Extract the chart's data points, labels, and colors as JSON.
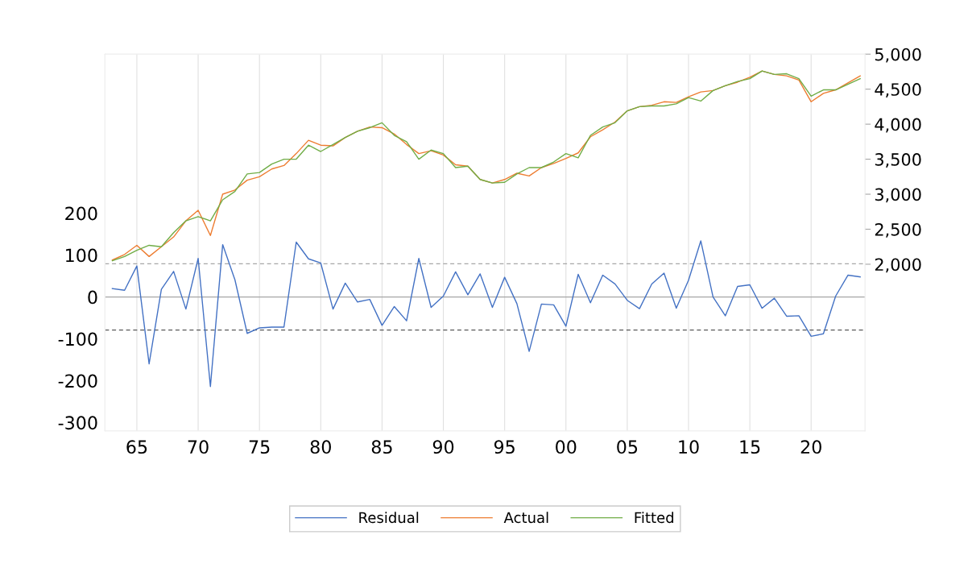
{
  "chart_data": {
    "type": "line",
    "x": [
      1963,
      1964,
      1965,
      1966,
      1967,
      1968,
      1969,
      1970,
      1971,
      1972,
      1973,
      1974,
      1975,
      1976,
      1977,
      1978,
      1979,
      1980,
      1981,
      1982,
      1983,
      1984,
      1985,
      1986,
      1987,
      1988,
      1989,
      1990,
      1991,
      1992,
      1993,
      1994,
      1995,
      1996,
      1997,
      1998,
      1999,
      2000,
      2001,
      2002,
      2003,
      2004,
      2005,
      2006,
      2007,
      2008,
      2009,
      2010,
      2011,
      2012,
      2013,
      2014,
      2015,
      2016,
      2017,
      2018,
      2019,
      2020,
      2021,
      2022,
      2023,
      2024
    ],
    "series": [
      {
        "name": "Residual",
        "color": "#4472c4",
        "axis": "y",
        "values": [
          20,
          16,
          74,
          -160,
          18,
          61,
          -29,
          92,
          -214,
          125,
          41,
          -87,
          -74,
          -72,
          -72,
          131,
          91,
          81,
          -29,
          33,
          -12,
          -6,
          -68,
          -23,
          -57,
          92,
          -25,
          2,
          60,
          5,
          55,
          -25,
          47,
          -16,
          -130,
          -17,
          -19,
          -70,
          54,
          -14,
          52,
          31,
          -8,
          -28,
          31,
          57,
          -27,
          40,
          134,
          0,
          -45,
          25,
          29,
          -27,
          -3,
          -46,
          -45,
          -94,
          -88,
          2,
          52,
          48
        ]
      },
      {
        "name": "Actual",
        "color": "#ed7d31",
        "axis": "y2",
        "values": [
          2060,
          2140,
          2270,
          2110,
          2250,
          2390,
          2620,
          2770,
          2410,
          3000,
          3060,
          3200,
          3250,
          3360,
          3410,
          3580,
          3770,
          3700,
          3690,
          3810,
          3900,
          3960,
          3950,
          3860,
          3710,
          3580,
          3620,
          3560,
          3420,
          3400,
          3210,
          3160,
          3210,
          3300,
          3260,
          3380,
          3440,
          3510,
          3590,
          3820,
          3920,
          4030,
          4190,
          4250,
          4270,
          4320,
          4310,
          4390,
          4460,
          4480,
          4550,
          4600,
          4670,
          4760,
          4710,
          4690,
          4630,
          4320,
          4440,
          4490,
          4590,
          4690
        ]
      },
      {
        "name": "Fitted",
        "color": "#70ad47",
        "axis": "y2",
        "values": [
          2050,
          2110,
          2200,
          2270,
          2250,
          2450,
          2620,
          2680,
          2620,
          2920,
          3040,
          3290,
          3310,
          3430,
          3500,
          3500,
          3700,
          3610,
          3710,
          3810,
          3900,
          3950,
          4020,
          3840,
          3750,
          3500,
          3630,
          3580,
          3380,
          3400,
          3210,
          3160,
          3170,
          3290,
          3380,
          3380,
          3460,
          3580,
          3520,
          3840,
          3960,
          4020,
          4190,
          4250,
          4260,
          4260,
          4290,
          4380,
          4330,
          4480,
          4550,
          4610,
          4650,
          4760,
          4710,
          4720,
          4650,
          4400,
          4490,
          4490,
          4570,
          4650
        ]
      }
    ],
    "xlim": [
      1962.4,
      2024.4
    ],
    "xticks": [
      {
        "value": 1965,
        "label": "65"
      },
      {
        "value": 1970,
        "label": "70"
      },
      {
        "value": 1975,
        "label": "75"
      },
      {
        "value": 1980,
        "label": "80"
      },
      {
        "value": 1985,
        "label": "85"
      },
      {
        "value": 1990,
        "label": "90"
      },
      {
        "value": 1995,
        "label": "95"
      },
      {
        "value": 2000,
        "label": "00"
      },
      {
        "value": 2005,
        "label": "05"
      },
      {
        "value": 2010,
        "label": "10"
      },
      {
        "value": 2015,
        "label": "15"
      },
      {
        "value": 2020,
        "label": "20"
      }
    ],
    "ylim": [
      -320,
      580
    ],
    "yticks": [
      -300,
      -200,
      -100,
      0,
      100,
      200
    ],
    "y2lim": [
      -380,
      5000
    ],
    "y2ticks": [
      {
        "value": 2000,
        "label": "2,000"
      },
      {
        "value": 2500,
        "label": "2,500"
      },
      {
        "value": 3000,
        "label": "3,000"
      },
      {
        "value": 3500,
        "label": "3,500"
      },
      {
        "value": 4000,
        "label": "4,000"
      },
      {
        "value": 4500,
        "label": "4,500"
      },
      {
        "value": 5000,
        "label": "5,000"
      }
    ],
    "ref_lines": [
      {
        "axis": "y",
        "value": 0,
        "color": "#a6a6a6",
        "line_style": "solid"
      },
      {
        "axis": "y",
        "value": 79,
        "color": "#a6a6a6",
        "line_style": "dashed"
      },
      {
        "axis": "y",
        "value": -79,
        "color": "#595959",
        "line_style": "dashed"
      }
    ],
    "grid": "x",
    "legend": "bottom",
    "line_style": "solid",
    "marker": "none"
  }
}
